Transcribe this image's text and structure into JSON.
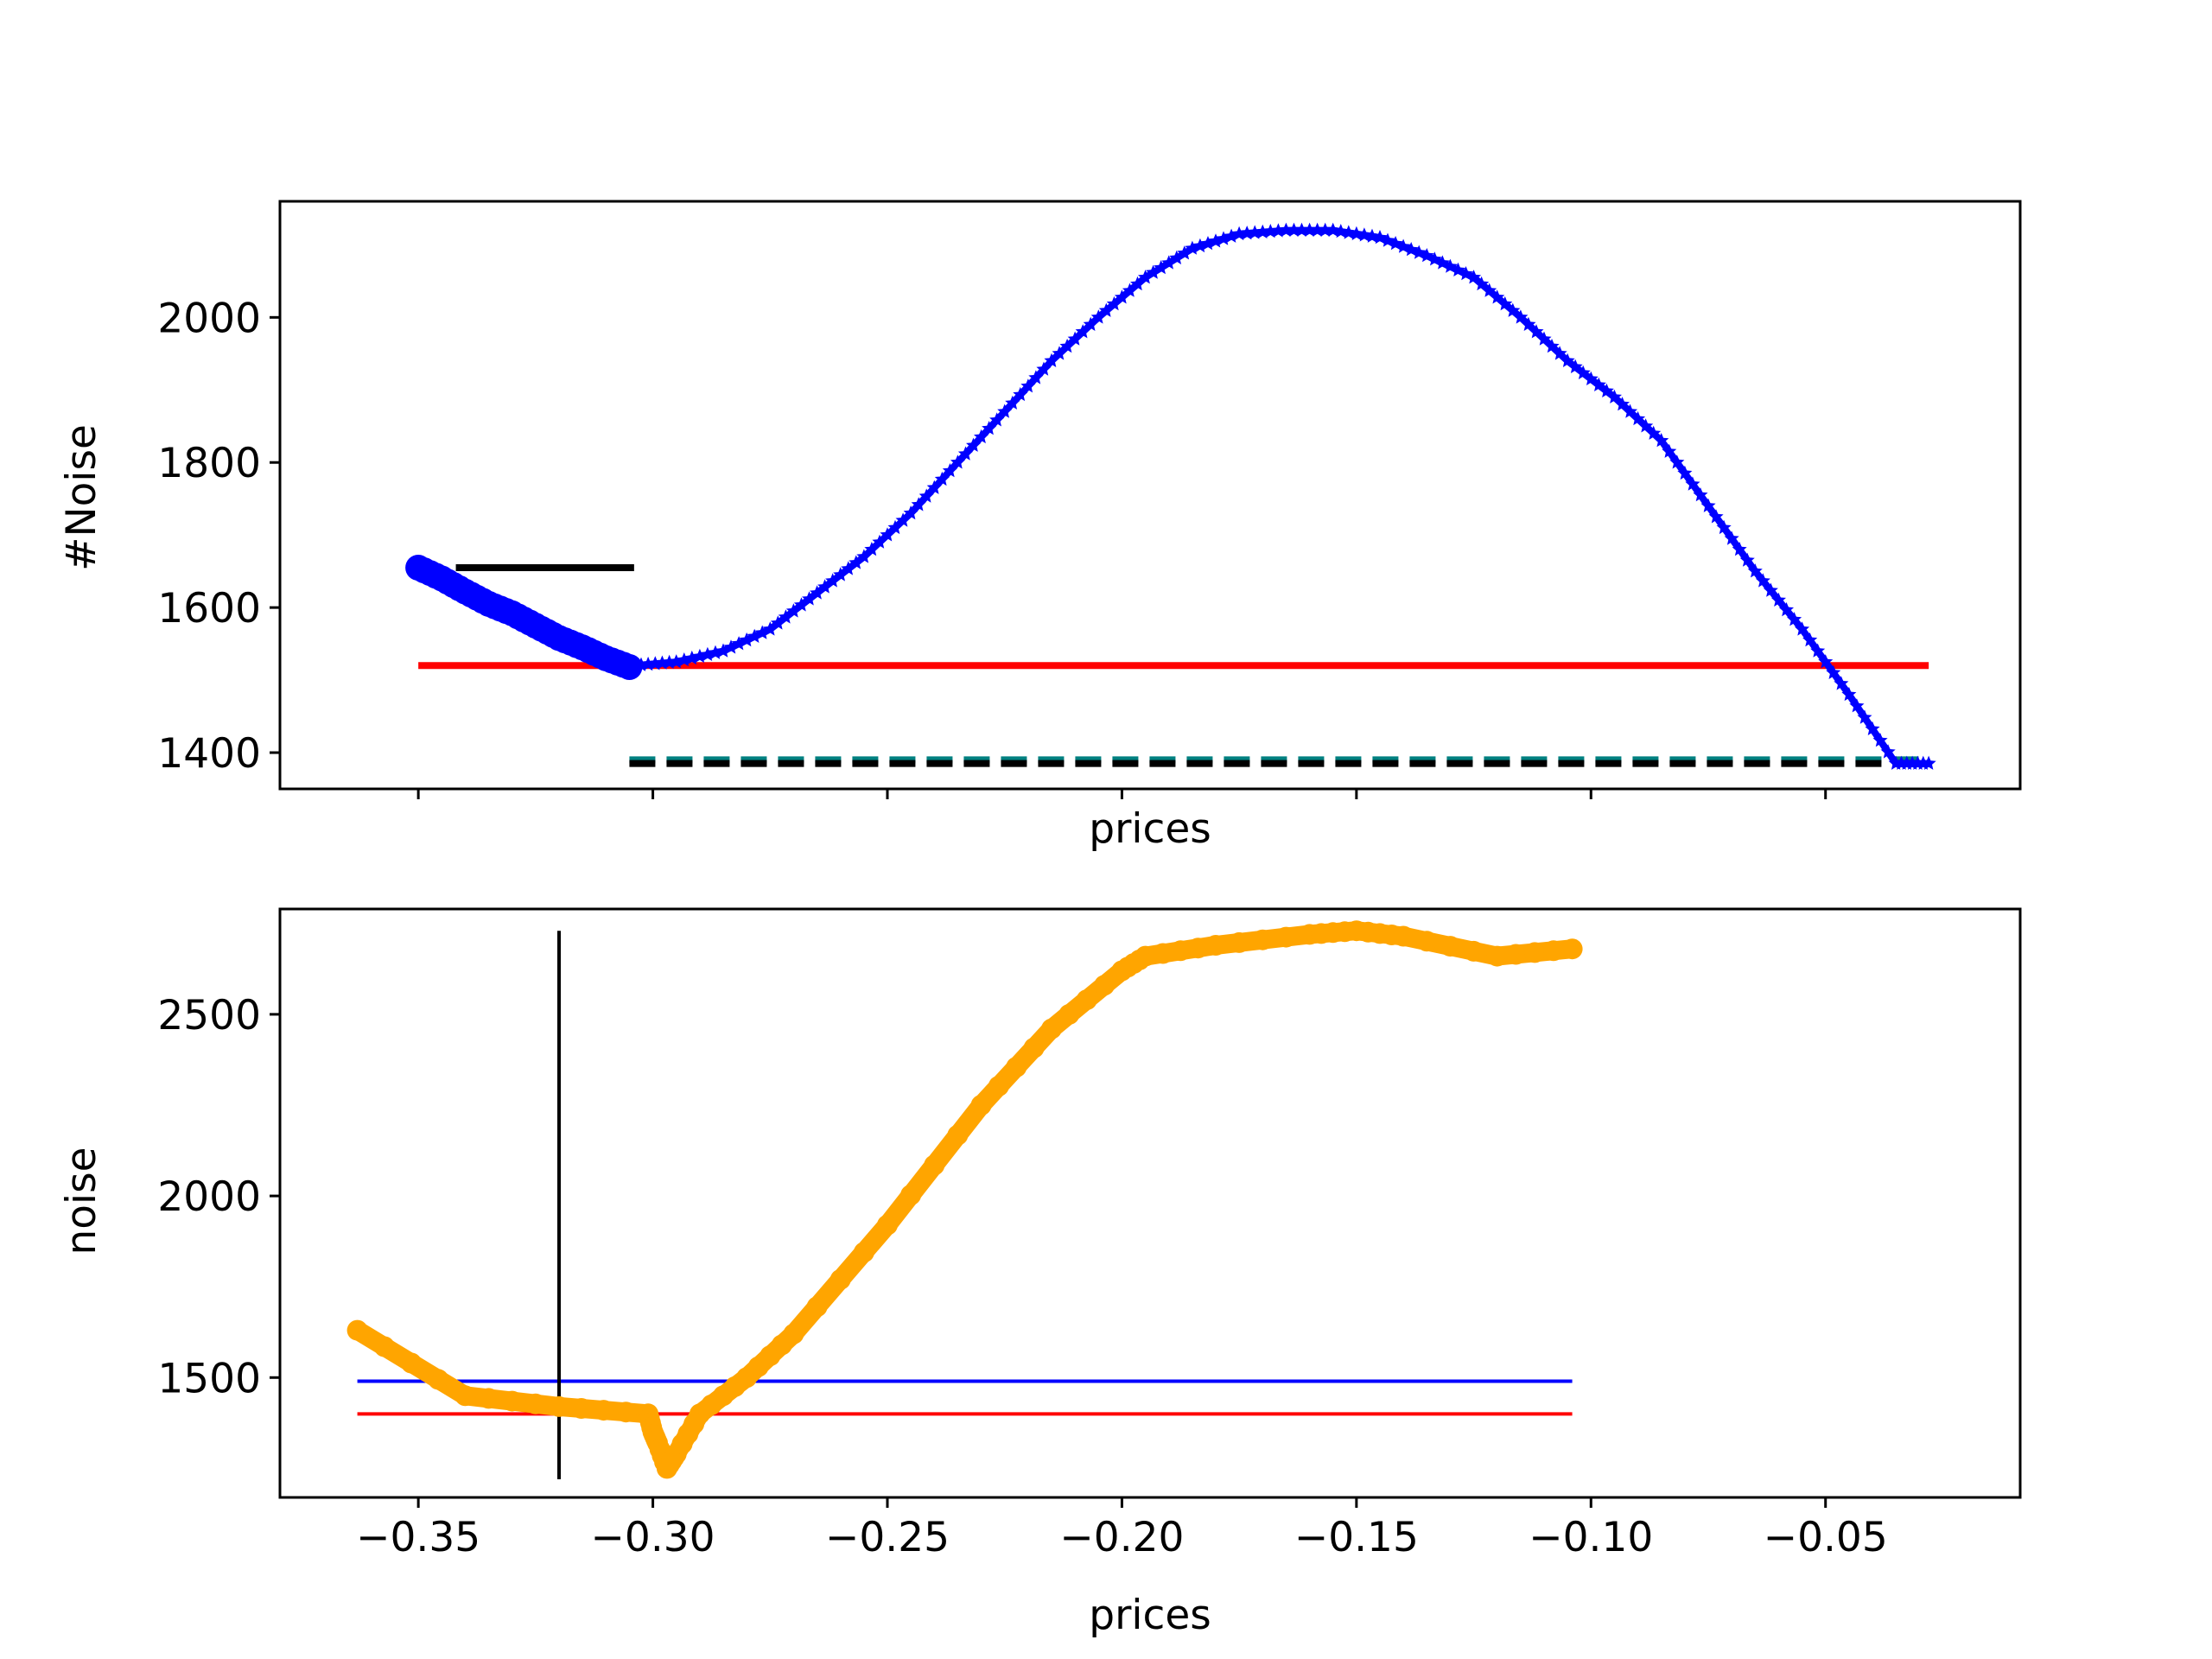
{
  "chart_data": [
    {
      "type": "line",
      "xlabel": "prices",
      "ylabel": "#Noise",
      "xlim": [
        -0.3795,
        -0.0085
      ],
      "ylim": [
        1350,
        2160
      ],
      "yticks": [
        1400,
        1600,
        1800,
        2000
      ],
      "xticks": [
        -0.35,
        -0.3,
        -0.25,
        -0.2,
        -0.15,
        -0.1,
        -0.05
      ],
      "xtick_labels_shown": false,
      "series": [
        {
          "color": "#0000ff",
          "marker": "circle",
          "x": [
            -0.35,
            -0.345,
            -0.34,
            -0.335,
            -0.33,
            -0.325,
            -0.32,
            -0.315,
            -0.31,
            -0.305
          ],
          "y": [
            1655,
            1640,
            1622,
            1605,
            1592,
            1575,
            1558,
            1545,
            1530,
            1518
          ]
        },
        {
          "color": "#0000ff",
          "marker": "star",
          "x": [
            -0.304,
            -0.295,
            -0.285,
            -0.275,
            -0.265,
            -0.255,
            -0.245,
            -0.235,
            -0.225,
            -0.215,
            -0.205,
            -0.195,
            -0.185,
            -0.175,
            -0.165,
            -0.155,
            -0.145,
            -0.135,
            -0.125,
            -0.115,
            -0.105,
            -0.095,
            -0.085,
            -0.075,
            -0.065,
            -0.055,
            -0.045,
            -0.035,
            -0.028
          ],
          "y": [
            1520,
            1525,
            1540,
            1570,
            1620,
            1670,
            1730,
            1800,
            1870,
            1940,
            2000,
            2055,
            2095,
            2115,
            2120,
            2120,
            2110,
            2085,
            2055,
            2000,
            1940,
            1890,
            1830,
            1740,
            1650,
            1570,
            1480,
            1385,
            1385
          ]
        }
      ],
      "hlines": [
        {
          "y": 1655,
          "xmin": -0.342,
          "xmax": -0.304,
          "color": "#000000",
          "style": "solid"
        },
        {
          "y": 1520,
          "xmin": -0.35,
          "xmax": -0.028,
          "color": "#ff0000",
          "style": "solid"
        },
        {
          "y": 1390,
          "xmin": -0.305,
          "xmax": -0.028,
          "color": "#008080",
          "style": "dashed"
        },
        {
          "y": 1385,
          "xmin": -0.305,
          "xmax": -0.028,
          "color": "#000000",
          "style": "dashed"
        }
      ]
    },
    {
      "type": "line",
      "xlabel": "prices",
      "ylabel": "noise",
      "xlim": [
        -0.3795,
        -0.0085
      ],
      "ylim": [
        1170,
        2790
      ],
      "yticks": [
        1500,
        2000,
        2500
      ],
      "xticks": [
        -0.35,
        -0.3,
        -0.25,
        -0.2,
        -0.15,
        -0.1,
        -0.05
      ],
      "xtick_labels": [
        "−0.35",
        "−0.30",
        "−0.25",
        "−0.20",
        "−0.15",
        "−0.10",
        "−0.05"
      ],
      "series": [
        {
          "color": "#ffa500",
          "marker": "circle",
          "x": [
            -0.363,
            -0.34,
            -0.32,
            -0.301,
            -0.3,
            -0.299,
            -0.297,
            -0.295,
            -0.29,
            -0.28,
            -0.27,
            -0.25,
            -0.23,
            -0.215,
            -0.2,
            -0.195,
            -0.18,
            -0.16,
            -0.15,
            -0.14,
            -0.12,
            -0.104
          ],
          "y": [
            1630,
            1450,
            1420,
            1400,
            1350,
            1320,
            1250,
            1290,
            1400,
            1500,
            1620,
            1920,
            2250,
            2460,
            2620,
            2660,
            2690,
            2720,
            2730,
            2715,
            2660,
            2680
          ]
        }
      ],
      "hlines": [
        {
          "y": 1490,
          "xmin": -0.363,
          "xmax": -0.104,
          "color": "#0000ff",
          "style": "solid"
        },
        {
          "y": 1400,
          "xmin": -0.363,
          "xmax": -0.104,
          "color": "#ff0000",
          "style": "solid"
        }
      ],
      "vlines": [
        {
          "x": -0.32,
          "ymin": 1220,
          "ymax": 2730,
          "color": "#000000",
          "style": "solid"
        }
      ]
    }
  ]
}
